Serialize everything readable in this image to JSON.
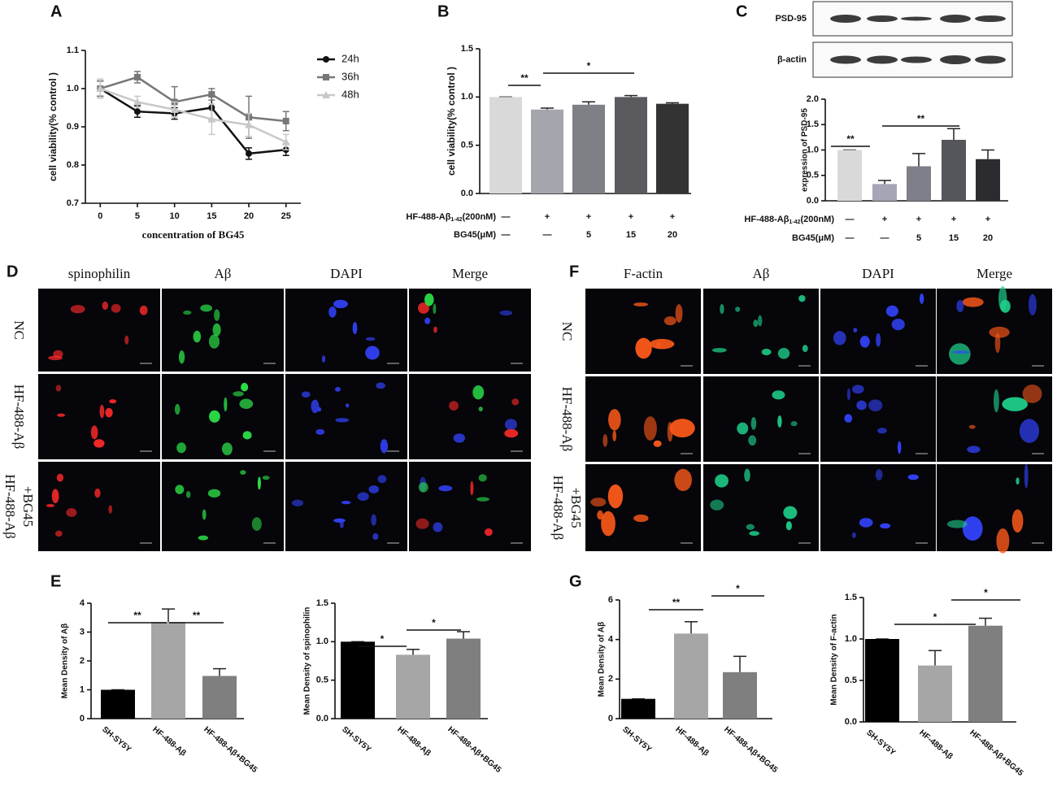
{
  "panel_labels": [
    "A",
    "B",
    "C",
    "D",
    "E",
    "F",
    "G"
  ],
  "chart_data": [
    {
      "type": "line",
      "x_label": "concentration of BG45",
      "y_label": "cell viability(% control )",
      "x": [
        0,
        5,
        10,
        15,
        20,
        25
      ],
      "xlim": [
        -2,
        27
      ],
      "xticks": [
        0,
        5,
        10,
        15,
        20,
        25
      ],
      "ylim": [
        0.7,
        1.1
      ],
      "yticks": [
        0.7,
        0.8,
        0.9,
        {
          "value": 1,
          "label": "1.0"
        },
        1.1
      ],
      "series": [
        {
          "name": "24h",
          "color": "#111111",
          "marker": "circle",
          "values": [
            1.0,
            0.94,
            0.935,
            0.95,
            0.83,
            0.84
          ],
          "errors": [
            0.02,
            0.015,
            0.015,
            0.03,
            0.015,
            0.015
          ]
        },
        {
          "name": "36h",
          "color": "#777777",
          "marker": "square",
          "values": [
            1.0,
            1.03,
            0.965,
            0.985,
            0.925,
            0.915
          ],
          "errors": [
            0.02,
            0.015,
            0.04,
            0.015,
            0.055,
            0.025
          ]
        },
        {
          "name": "48h",
          "color": "#c8c8c8",
          "marker": "triangle",
          "values": [
            1.0,
            0.965,
            0.945,
            0.92,
            0.905,
            0.86
          ],
          "errors": [
            0.025,
            0.015,
            0.02,
            0.04,
            0.03,
            0.02
          ]
        }
      ]
    },
    {
      "type": "bar",
      "y_label": "cell viability(% control )",
      "ylim": [
        0,
        1.5
      ],
      "yticks": [
        {
          "value": 0,
          "label": "0.0"
        },
        0.5,
        {
          "value": 1,
          "label": "1.0"
        },
        1.5
      ],
      "values": [
        1.0,
        0.87,
        0.92,
        1.0,
        0.93
      ],
      "errors": [
        0,
        0.015,
        0.03,
        0.015,
        0.01
      ],
      "colors": [
        "#d9d9d9",
        "#a5a5ad",
        "#7f7f86",
        "#5a5a5f",
        "#333333"
      ],
      "treatments": [
        {
          "name": "HF-488-Aβ",
          "sub": "1-42",
          "unit": "(200nM)",
          "values": [
            "—",
            "+",
            "+",
            "+",
            "+"
          ]
        },
        {
          "name": "BG45(μM)",
          "values": [
            "—",
            "—",
            "5",
            "15",
            "20"
          ]
        }
      ],
      "annotations": [
        "**",
        "*"
      ]
    },
    {
      "type": "bar",
      "y_label": "expression of PSD-95",
      "blot_labels": [
        "PSD-95",
        "β-actin"
      ],
      "ylim": [
        0,
        2
      ],
      "yticks": [
        {
          "value": 0,
          "label": "0.0"
        },
        0.5,
        {
          "value": 1,
          "label": "1.0"
        },
        1.5,
        {
          "value": 2,
          "label": "2.0"
        }
      ],
      "values": [
        1.0,
        0.33,
        0.68,
        1.2,
        0.82
      ],
      "errors": [
        0,
        0.07,
        0.25,
        0.22,
        0.18
      ],
      "colors": [
        "#d9d9d9",
        "#a5a5b5",
        "#7f7f8a",
        "#55555c",
        "#2b2b30"
      ],
      "treatments": [
        {
          "name": "HF-488-Aβ",
          "sub": "1-42",
          "unit": "(200nM)",
          "values": [
            "—",
            "+",
            "+",
            "+",
            "+"
          ]
        },
        {
          "name": "BG45(μM)",
          "values": [
            "—",
            "—",
            "5",
            "15",
            "20"
          ]
        }
      ],
      "annotations": [
        "**",
        "**"
      ]
    },
    {
      "type": "bar",
      "y_label": "Mean Density of Aβ",
      "categories": [
        "SH-SY5Y",
        "HF-488-Aβ",
        "HF-488-Aβ+BG45"
      ],
      "ylim": [
        0,
        4
      ],
      "yticks": [
        0,
        1,
        2,
        3,
        4
      ],
      "values": [
        1.0,
        3.35,
        1.48
      ],
      "errors": [
        0,
        0.45,
        0.25
      ],
      "colors": [
        "#000000",
        "#a6a6a6",
        "#7f7f7f"
      ],
      "annotations": [
        "**",
        "**"
      ]
    },
    {
      "type": "bar",
      "y_label": "Mean Density of spinophilin",
      "categories": [
        "SH-SY5Y",
        "HF-488-Aβ",
        "HF-488-Aβ+BG45"
      ],
      "ylim": [
        0,
        1.5
      ],
      "yticks": [
        {
          "value": 0,
          "label": "0.0"
        },
        0.5,
        {
          "value": 1,
          "label": "1.0"
        },
        1.5
      ],
      "values": [
        1.0,
        0.83,
        1.04
      ],
      "errors": [
        0,
        0.07,
        0.09
      ],
      "colors": [
        "#000000",
        "#a6a6a6",
        "#7f7f7f"
      ],
      "annotations": [
        "*",
        "*"
      ]
    },
    {
      "type": "bar",
      "y_label": "Mean Density of Aβ",
      "categories": [
        "SH-SY5Y",
        "HF-488-Aβ",
        "HF-488-Aβ+BG45"
      ],
      "ylim": [
        0,
        6
      ],
      "yticks": [
        0,
        2,
        4,
        6
      ],
      "values": [
        1.0,
        4.3,
        2.35
      ],
      "errors": [
        0,
        0.6,
        0.8
      ],
      "colors": [
        "#000000",
        "#a6a6a6",
        "#7f7f7f"
      ],
      "annotations": [
        "**",
        "*"
      ]
    },
    {
      "type": "bar",
      "y_label": "Mean Density of F-actin",
      "categories": [
        "SH-SY5Y",
        "HF-488-Aβ",
        "HF-488-Aβ+BG45"
      ],
      "ylim": [
        0,
        1.5
      ],
      "yticks": [
        {
          "value": 0,
          "label": "0.0"
        },
        0.5,
        {
          "value": 1,
          "label": "1.0"
        },
        1.5
      ],
      "values": [
        1.0,
        0.68,
        1.16
      ],
      "errors": [
        0,
        0.18,
        0.09
      ],
      "colors": [
        "#000000",
        "#a6a6a6",
        "#7f7f7f"
      ],
      "annotations": [
        "*",
        "*"
      ]
    }
  ],
  "images": [
    {
      "columns": [
        "spinophilin",
        "Aβ",
        "DAPI",
        "Merge"
      ],
      "rows": [
        [
          "NC"
        ],
        [
          "HF-488-Aβ"
        ],
        [
          "HF-488-Aβ",
          "+BG45"
        ]
      ]
    },
    {
      "columns": [
        "F-actin",
        "Aβ",
        "DAPI",
        "Merge"
      ],
      "rows": [
        [
          "NC"
        ],
        [
          "HF-488-Aβ"
        ],
        [
          "HF-488-Aβ",
          "+BG45"
        ]
      ]
    }
  ]
}
